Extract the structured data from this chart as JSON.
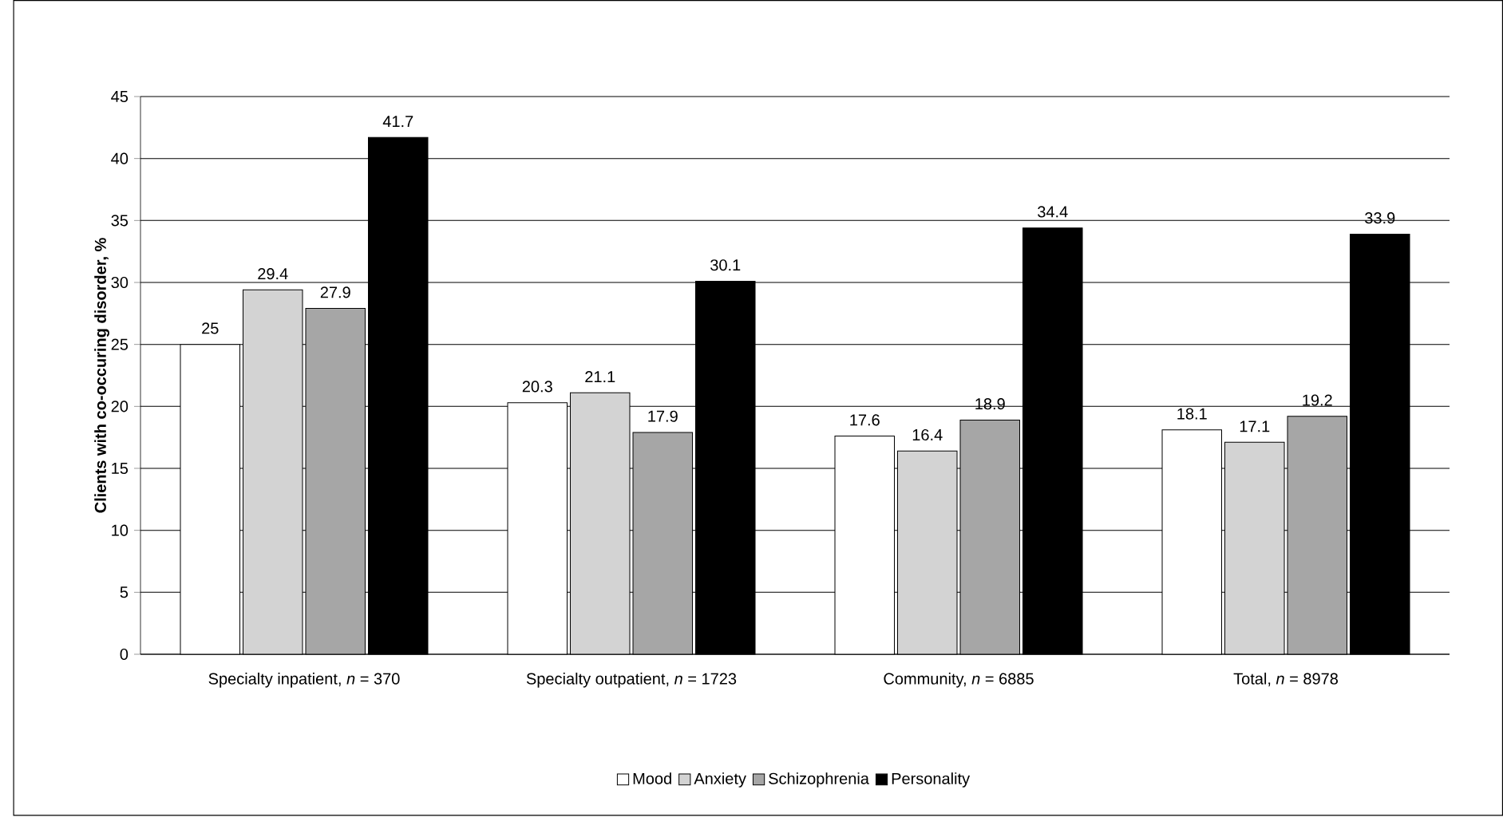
{
  "chart_data": {
    "type": "bar",
    "ylabel": "Clients with co-occuring disorder, %",
    "categories": [
      "Specialty inpatient, *n* = 370",
      "Specialty outpatient, *n* = 1723",
      "Community, *n* = 6885",
      "Total, *n* = 8978"
    ],
    "series": [
      {
        "name": "Mood",
        "color": "#ffffff",
        "values": [
          25,
          20.3,
          17.6,
          18.1
        ]
      },
      {
        "name": "Anxiety",
        "color": "#d3d3d3",
        "values": [
          29.4,
          21.1,
          16.4,
          17.1
        ]
      },
      {
        "name": "Schizophrenia",
        "color": "#a6a6a6",
        "values": [
          27.9,
          17.9,
          18.9,
          19.2
        ]
      },
      {
        "name": "Personality",
        "color": "#000000",
        "values": [
          41.7,
          30.1,
          34.4,
          33.9
        ]
      }
    ],
    "ylim": [
      0,
      45
    ],
    "yticks": [
      0,
      5,
      10,
      15,
      20,
      25,
      30,
      35,
      40,
      45
    ],
    "grid": "y",
    "legend": "bottom",
    "data_labels": true
  }
}
